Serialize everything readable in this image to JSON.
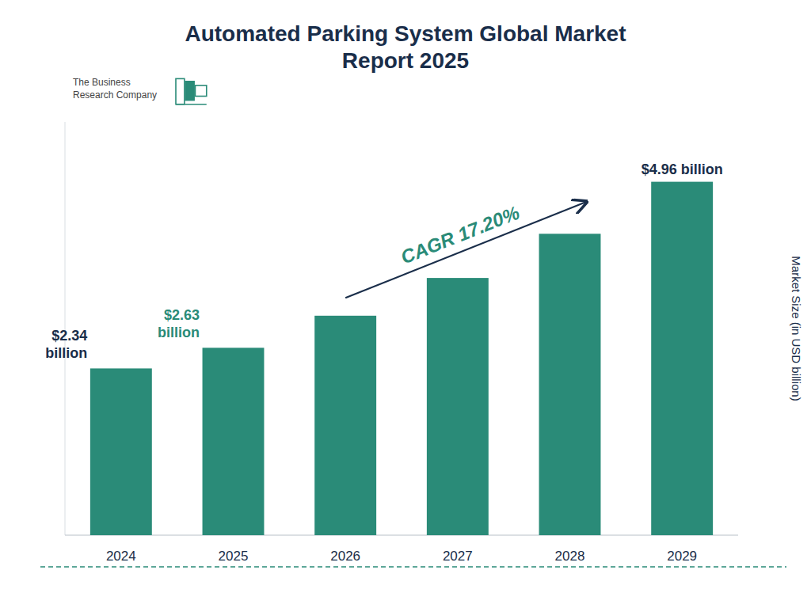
{
  "chart_data": {
    "type": "bar",
    "title": "Automated Parking System Global Market\nReport 2025",
    "categories": [
      "2024",
      "2025",
      "2026",
      "2027",
      "2028",
      "2029"
    ],
    "values": [
      2.34,
      2.63,
      3.08,
      3.61,
      4.23,
      4.96
    ],
    "color": "#2a8b78",
    "y_label": "Market Size (in USD billion)",
    "ylim": [
      0,
      5.8
    ],
    "tick_labels": "x",
    "grid": false,
    "annotations": [
      {
        "text": "The Business\nResearch Company",
        "color": "#444444"
      },
      {
        "text": "$2.34\nbillion",
        "category": "2024",
        "color": "#1a2e4a"
      },
      {
        "text": "$2.63\nbillion",
        "category": "2025",
        "color": "#2a8b78"
      },
      {
        "text": "$4.96 billion",
        "category": "2029",
        "color": "#1a2e4a"
      },
      {
        "text": "CAGR 17.20%",
        "from": "2026",
        "to": "2028",
        "color": "#2a8b78"
      }
    ]
  }
}
